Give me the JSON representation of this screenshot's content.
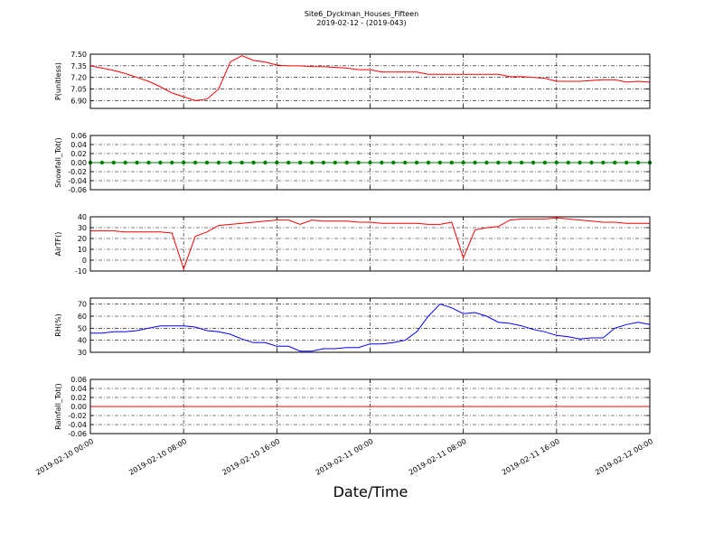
{
  "chart_data": {
    "title": "Site6_Dyckman_Houses_Fifteen",
    "subtitle": "2019-02-12 - (2019-043)",
    "xlabel": "Date/Time",
    "xlim": [
      "2019-02-10 00:00",
      "2019-02-12 00:00"
    ],
    "xticks": [
      "2019-02-10 00:00",
      "2019-02-10 08:00",
      "2019-02-10 16:00",
      "2019-02-11 00:00",
      "2019-02-11 08:00",
      "2019-02-11 16:00",
      "2019-02-12 00:00"
    ],
    "grid": true,
    "x": [
      "2019-02-10 00:00",
      "2019-02-10 01:00",
      "2019-02-10 02:00",
      "2019-02-10 03:00",
      "2019-02-10 04:00",
      "2019-02-10 05:00",
      "2019-02-10 06:00",
      "2019-02-10 07:00",
      "2019-02-10 08:00",
      "2019-02-10 09:00",
      "2019-02-10 10:00",
      "2019-02-10 11:00",
      "2019-02-10 12:00",
      "2019-02-10 13:00",
      "2019-02-10 14:00",
      "2019-02-10 15:00",
      "2019-02-10 16:00",
      "2019-02-10 17:00",
      "2019-02-10 18:00",
      "2019-02-10 19:00",
      "2019-02-10 20:00",
      "2019-02-10 21:00",
      "2019-02-10 22:00",
      "2019-02-10 23:00",
      "2019-02-11 00:00",
      "2019-02-11 01:00",
      "2019-02-11 02:00",
      "2019-02-11 03:00",
      "2019-02-11 04:00",
      "2019-02-11 05:00",
      "2019-02-11 06:00",
      "2019-02-11 07:00",
      "2019-02-11 08:00",
      "2019-02-11 09:00",
      "2019-02-11 10:00",
      "2019-02-11 11:00",
      "2019-02-11 12:00",
      "2019-02-11 13:00",
      "2019-02-11 14:00",
      "2019-02-11 15:00",
      "2019-02-11 16:00",
      "2019-02-11 17:00",
      "2019-02-11 18:00",
      "2019-02-11 19:00",
      "2019-02-11 20:00",
      "2019-02-11 21:00",
      "2019-02-11 22:00",
      "2019-02-11 23:00",
      "2019-02-12 00:00"
    ],
    "panels": [
      {
        "type": "line",
        "ylabel": "P(unitless)",
        "ylim": [
          6.8,
          7.5
        ],
        "yticks": [
          {
            "value": 7.5,
            "label": "7.50"
          },
          7.35,
          {
            "value": 7.2,
            "label": "7.20"
          },
          7.05,
          {
            "value": 6.9,
            "label": "6.90"
          }
        ],
        "series": [
          {
            "name": "P",
            "color": "#ff0000",
            "values": [
              7.35,
              7.32,
              7.29,
              7.25,
              7.2,
              7.15,
              7.08,
              7.0,
              6.95,
              6.9,
              6.92,
              7.05,
              7.4,
              7.48,
              7.42,
              7.4,
              7.36,
              7.35,
              7.35,
              7.34,
              7.34,
              7.33,
              7.32,
              7.3,
              7.3,
              7.27,
              7.27,
              7.27,
              7.27,
              7.24,
              7.24,
              7.24,
              7.24,
              7.24,
              7.24,
              7.24,
              7.21,
              7.21,
              7.2,
              7.19,
              7.15,
              7.15,
              7.15,
              7.16,
              7.17,
              7.17,
              7.14,
              7.15,
              7.14
            ]
          }
        ]
      },
      {
        "type": "line",
        "ylabel": "Snowfall_Tot()",
        "ylim": [
          -0.06,
          0.06
        ],
        "yticks": [
          0.06,
          0.04,
          0.02,
          {
            "value": 0,
            "label": "0.00"
          },
          -0.02,
          -0.04,
          -0.06
        ],
        "series": [
          {
            "name": "Snowfall_Tot",
            "color": "#008000",
            "marker": true,
            "values": [
              0,
              0,
              0,
              0,
              0,
              0,
              0,
              0,
              0,
              0,
              0,
              0,
              0,
              0,
              0,
              0,
              0,
              0,
              0,
              0,
              0,
              0,
              0,
              0,
              0,
              0,
              0,
              0,
              0,
              0,
              0,
              0,
              0,
              0,
              0,
              0,
              0,
              0,
              0,
              0,
              0,
              0,
              0,
              0,
              0,
              0,
              0,
              0,
              0
            ]
          }
        ]
      },
      {
        "type": "line",
        "ylabel": "AirTF()",
        "ylim": [
          -10,
          40
        ],
        "yticks": [
          40,
          30,
          20,
          10,
          0,
          -10
        ],
        "series": [
          {
            "name": "AirTF",
            "color": "#ff0000",
            "values": [
              27,
              27,
              27,
              26,
              26,
              26,
              26,
              25,
              -8,
              22,
              26,
              32,
              33,
              34,
              35,
              36,
              37,
              37,
              33,
              37,
              36,
              36,
              36,
              35,
              35,
              34,
              34,
              34,
              34,
              33,
              33,
              35,
              2,
              28,
              30,
              31,
              37,
              38,
              38,
              38,
              39,
              38,
              37,
              36,
              35,
              35,
              34,
              34,
              34
            ]
          }
        ]
      },
      {
        "type": "line",
        "ylabel": "RH(%)",
        "ylim": [
          30,
          75
        ],
        "yticks": [
          70,
          60,
          50,
          40,
          30
        ],
        "series": [
          {
            "name": "RH",
            "color": "#0000ff",
            "values": [
              46,
              46,
              47,
              47,
              48,
              50,
              52,
              52,
              52,
              51,
              48,
              47,
              45,
              41,
              38,
              38,
              35,
              35,
              31,
              31,
              33,
              33,
              34,
              34,
              37,
              37,
              38,
              40,
              47,
              60,
              70,
              67,
              62,
              63,
              60,
              55,
              54,
              52,
              49,
              47,
              44,
              43,
              41,
              42,
              42,
              50,
              53,
              55,
              53
            ]
          }
        ]
      },
      {
        "type": "line",
        "ylabel": "Rainfall_Tot()",
        "ylim": [
          -0.06,
          0.06
        ],
        "yticks": [
          0.06,
          0.04,
          0.02,
          {
            "value": 0,
            "label": "0.00"
          },
          -0.02,
          -0.04,
          -0.06
        ],
        "series": [
          {
            "name": "Rainfall_Tot",
            "color": "#ff0000",
            "values": [
              0,
              0,
              0,
              0,
              0,
              0,
              0,
              0,
              0,
              0,
              0,
              0,
              0,
              0,
              0,
              0,
              0,
              0,
              0,
              0,
              0,
              0,
              0,
              0,
              0,
              0,
              0,
              0,
              0,
              0,
              0,
              0,
              0,
              0,
              0,
              0,
              0,
              0,
              0,
              0,
              0,
              0,
              0,
              0,
              0,
              0,
              0,
              0,
              0
            ]
          }
        ]
      }
    ]
  }
}
